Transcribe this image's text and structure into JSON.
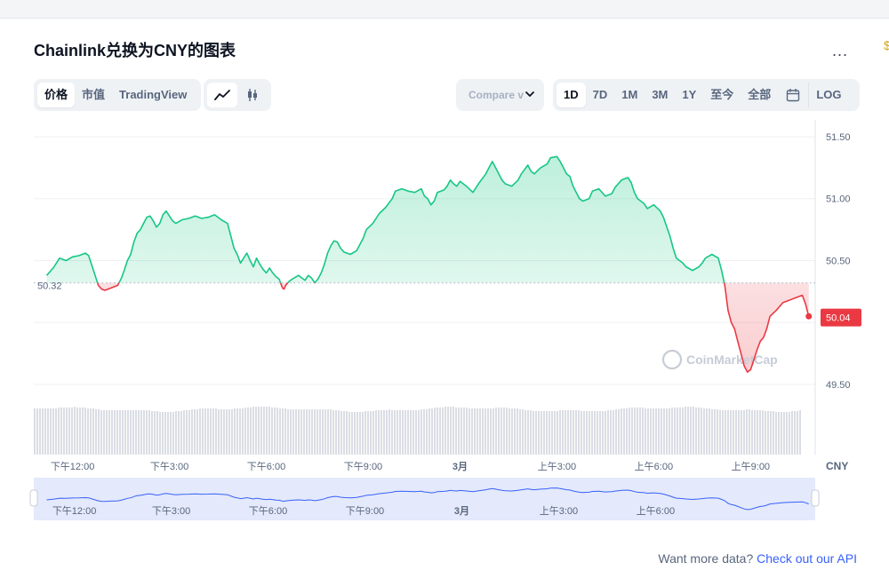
{
  "page": {
    "title": "Chainlink兑换为CNY的图表",
    "more_label": "...",
    "edge_glyph": "$"
  },
  "toolbar": {
    "tabs": [
      "价格",
      "市值",
      "TradingView"
    ],
    "active_tab": "价格",
    "chart_types": [
      {
        "icon": "line-chart-icon",
        "active": true
      },
      {
        "icon": "candlestick-icon",
        "active": false
      }
    ],
    "compare_label": "Compare v",
    "ranges": [
      "1D",
      "7D",
      "1M",
      "3M",
      "1Y",
      "至今",
      "全部"
    ],
    "active_range": "1D",
    "calendar_icon": "calendar-icon",
    "log_label": "LOG"
  },
  "chart_data": {
    "type": "line",
    "title": "Chainlink兑换为CNY的图表",
    "currency_label": "CNY",
    "baseline": 50.32,
    "baseline_label": "50.32",
    "last_value": 50.04,
    "last_value_label": "50.04",
    "ylim": [
      49.45,
      51.6
    ],
    "y_ticks": [
      49.5,
      50.0,
      50.5,
      51.0,
      51.5
    ],
    "y_tick_labels": [
      "49.50",
      "",
      "50.50",
      "51.00",
      "51.50"
    ],
    "x_range_hours": [
      -1.2,
      23.0
    ],
    "x_ticks": [
      {
        "t": 0,
        "label": "下午12:00"
      },
      {
        "t": 3,
        "label": "下午3:00"
      },
      {
        "t": 6,
        "label": "下午6:00"
      },
      {
        "t": 9,
        "label": "下午9:00"
      },
      {
        "t": 12,
        "label": "3月"
      },
      {
        "t": 15,
        "label": "上午3:00"
      },
      {
        "t": 18,
        "label": "上午6:00"
      },
      {
        "t": 21,
        "label": "上午9:00"
      }
    ],
    "grid": true,
    "up_color": "#16c784",
    "down_color": "#ea3943",
    "watermark": "CoinMarketCap",
    "series": [
      {
        "values": [
          [
            -0.8,
            50.38
          ],
          [
            -0.6,
            50.44
          ],
          [
            -0.4,
            50.52
          ],
          [
            -0.2,
            50.5
          ],
          [
            0.0,
            50.53
          ],
          [
            0.2,
            50.54
          ],
          [
            0.4,
            50.56
          ],
          [
            0.5,
            50.54
          ],
          [
            0.6,
            50.46
          ],
          [
            0.7,
            50.38
          ],
          [
            0.8,
            50.3
          ],
          [
            0.9,
            50.27
          ],
          [
            1.0,
            50.26
          ],
          [
            1.2,
            50.28
          ],
          [
            1.4,
            50.3
          ],
          [
            1.5,
            50.35
          ],
          [
            1.6,
            50.42
          ],
          [
            1.7,
            50.5
          ],
          [
            1.8,
            50.55
          ],
          [
            1.9,
            50.65
          ],
          [
            2.0,
            50.72
          ],
          [
            2.1,
            50.75
          ],
          [
            2.2,
            50.8
          ],
          [
            2.3,
            50.85
          ],
          [
            2.4,
            50.86
          ],
          [
            2.5,
            50.82
          ],
          [
            2.6,
            50.77
          ],
          [
            2.7,
            50.8
          ],
          [
            2.8,
            50.87
          ],
          [
            2.9,
            50.9
          ],
          [
            3.0,
            50.86
          ],
          [
            3.1,
            50.82
          ],
          [
            3.2,
            50.8
          ],
          [
            3.4,
            50.83
          ],
          [
            3.6,
            50.84
          ],
          [
            3.8,
            50.86
          ],
          [
            4.0,
            50.84
          ],
          [
            4.2,
            50.85
          ],
          [
            4.4,
            50.87
          ],
          [
            4.6,
            50.83
          ],
          [
            4.8,
            50.8
          ],
          [
            4.9,
            50.7
          ],
          [
            5.0,
            50.6
          ],
          [
            5.1,
            50.55
          ],
          [
            5.2,
            50.48
          ],
          [
            5.3,
            50.52
          ],
          [
            5.4,
            50.56
          ],
          [
            5.5,
            50.5
          ],
          [
            5.6,
            50.45
          ],
          [
            5.7,
            50.52
          ],
          [
            5.8,
            50.47
          ],
          [
            5.9,
            50.43
          ],
          [
            6.0,
            50.4
          ],
          [
            6.1,
            50.44
          ],
          [
            6.2,
            50.4
          ],
          [
            6.3,
            50.37
          ],
          [
            6.4,
            50.35
          ],
          [
            6.5,
            50.28
          ],
          [
            6.55,
            50.27
          ],
          [
            6.6,
            50.3
          ],
          [
            6.7,
            50.33
          ],
          [
            6.8,
            50.35
          ],
          [
            7.0,
            50.38
          ],
          [
            7.1,
            50.36
          ],
          [
            7.2,
            50.34
          ],
          [
            7.3,
            50.38
          ],
          [
            7.4,
            50.36
          ],
          [
            7.5,
            50.32
          ],
          [
            7.6,
            50.35
          ],
          [
            7.7,
            50.4
          ],
          [
            7.8,
            50.47
          ],
          [
            7.9,
            50.56
          ],
          [
            8.0,
            50.62
          ],
          [
            8.1,
            50.66
          ],
          [
            8.2,
            50.65
          ],
          [
            8.3,
            50.6
          ],
          [
            8.4,
            50.57
          ],
          [
            8.6,
            50.55
          ],
          [
            8.8,
            50.58
          ],
          [
            9.0,
            50.68
          ],
          [
            9.1,
            50.75
          ],
          [
            9.3,
            50.8
          ],
          [
            9.5,
            50.88
          ],
          [
            9.7,
            50.93
          ],
          [
            9.9,
            51.0
          ],
          [
            10.0,
            51.06
          ],
          [
            10.2,
            51.08
          ],
          [
            10.4,
            51.06
          ],
          [
            10.6,
            51.05
          ],
          [
            10.8,
            51.08
          ],
          [
            10.9,
            51.02
          ],
          [
            11.0,
            51.0
          ],
          [
            11.1,
            50.95
          ],
          [
            11.2,
            50.98
          ],
          [
            11.3,
            51.05
          ],
          [
            11.5,
            51.07
          ],
          [
            11.6,
            51.1
          ],
          [
            11.7,
            51.15
          ],
          [
            11.8,
            51.12
          ],
          [
            11.9,
            51.1
          ],
          [
            12.0,
            51.14
          ],
          [
            12.2,
            51.1
          ],
          [
            12.4,
            51.05
          ],
          [
            12.6,
            51.13
          ],
          [
            12.8,
            51.2
          ],
          [
            12.9,
            51.25
          ],
          [
            13.0,
            51.3
          ],
          [
            13.1,
            51.25
          ],
          [
            13.2,
            51.2
          ],
          [
            13.3,
            51.15
          ],
          [
            13.4,
            51.12
          ],
          [
            13.6,
            51.1
          ],
          [
            13.8,
            51.15
          ],
          [
            13.9,
            51.2
          ],
          [
            14.1,
            51.27
          ],
          [
            14.2,
            51.22
          ],
          [
            14.3,
            51.2
          ],
          [
            14.5,
            51.25
          ],
          [
            14.7,
            51.28
          ],
          [
            14.8,
            51.33
          ],
          [
            15.0,
            51.34
          ],
          [
            15.1,
            51.3
          ],
          [
            15.2,
            51.25
          ],
          [
            15.3,
            51.2
          ],
          [
            15.4,
            51.18
          ],
          [
            15.5,
            51.1
          ],
          [
            15.6,
            51.05
          ],
          [
            15.7,
            51.0
          ],
          [
            15.8,
            50.98
          ],
          [
            16.0,
            51.0
          ],
          [
            16.1,
            51.06
          ],
          [
            16.3,
            51.08
          ],
          [
            16.5,
            51.02
          ],
          [
            16.7,
            51.04
          ],
          [
            16.8,
            51.09
          ],
          [
            16.9,
            51.12
          ],
          [
            17.0,
            51.15
          ],
          [
            17.2,
            51.17
          ],
          [
            17.3,
            51.13
          ],
          [
            17.4,
            51.05
          ],
          [
            17.5,
            51.0
          ],
          [
            17.7,
            50.96
          ],
          [
            17.8,
            50.92
          ],
          [
            18.0,
            50.95
          ],
          [
            18.2,
            50.9
          ],
          [
            18.3,
            50.85
          ],
          [
            18.5,
            50.7
          ],
          [
            18.6,
            50.6
          ],
          [
            18.7,
            50.52
          ],
          [
            18.9,
            50.48
          ],
          [
            19.0,
            50.45
          ],
          [
            19.2,
            50.42
          ],
          [
            19.4,
            50.45
          ],
          [
            19.5,
            50.48
          ],
          [
            19.6,
            50.52
          ],
          [
            19.8,
            50.55
          ],
          [
            20.0,
            50.52
          ],
          [
            20.1,
            50.42
          ],
          [
            20.2,
            50.3
          ],
          [
            20.3,
            50.1
          ],
          [
            20.4,
            50.0
          ],
          [
            20.5,
            49.95
          ],
          [
            20.6,
            49.85
          ],
          [
            20.7,
            49.75
          ],
          [
            20.8,
            49.65
          ],
          [
            20.9,
            49.6
          ],
          [
            21.0,
            49.62
          ],
          [
            21.1,
            49.7
          ],
          [
            21.2,
            49.78
          ],
          [
            21.3,
            49.85
          ],
          [
            21.4,
            49.88
          ],
          [
            21.5,
            49.95
          ],
          [
            21.6,
            50.05
          ],
          [
            21.8,
            50.1
          ],
          [
            22.0,
            50.16
          ],
          [
            22.2,
            50.18
          ],
          [
            22.4,
            50.2
          ],
          [
            22.6,
            50.22
          ],
          [
            22.7,
            50.15
          ],
          [
            22.8,
            50.05
          ]
        ]
      }
    ],
    "volume_note": "volume bars under price line",
    "navigator": {
      "ticks": [
        "下午12:00",
        "下午3:00",
        "下午6:00",
        "下午9:00",
        "3月",
        "上午3:00",
        "上午6:00"
      ]
    }
  },
  "footer": {
    "text": "Want more data?",
    "link": "Check out our API"
  }
}
